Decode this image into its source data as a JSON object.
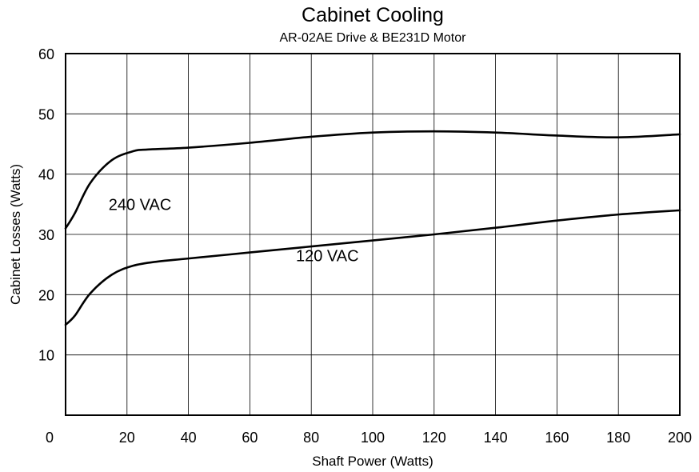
{
  "chart_data": {
    "type": "line",
    "title": "Cabinet Cooling",
    "subtitle": "AR-02AE Drive & BE231D Motor",
    "xlabel": "Shaft Power (Watts)",
    "ylabel": "Cabinet Losses (Watts)",
    "xlim": [
      0,
      200
    ],
    "ylim": [
      0,
      60
    ],
    "xticks": [
      0,
      20,
      40,
      60,
      80,
      100,
      120,
      140,
      160,
      180,
      200
    ],
    "yticks": [
      10,
      20,
      30,
      40,
      50,
      60
    ],
    "grid": true,
    "series": [
      {
        "name": "240 VAC",
        "x": [
          0,
          3,
          8,
          15,
          22,
          27,
          40,
          60,
          80,
          100,
          120,
          140,
          160,
          180,
          200
        ],
        "values": [
          31,
          33.5,
          38.5,
          42.3,
          43.8,
          44.1,
          44.4,
          45.2,
          46.2,
          46.9,
          47.1,
          46.9,
          46.4,
          46.1,
          46.6
        ],
        "label_at": [
          14,
          35
        ]
      },
      {
        "name": "120 VAC",
        "x": [
          0,
          3,
          8,
          15,
          22,
          30,
          40,
          60,
          80,
          100,
          120,
          140,
          160,
          180,
          200
        ],
        "values": [
          15,
          16.5,
          20.2,
          23.3,
          24.8,
          25.5,
          26,
          27,
          28,
          29,
          30,
          31.1,
          32.3,
          33.3,
          34
        ],
        "label_at": [
          75,
          26.5
        ]
      }
    ]
  }
}
